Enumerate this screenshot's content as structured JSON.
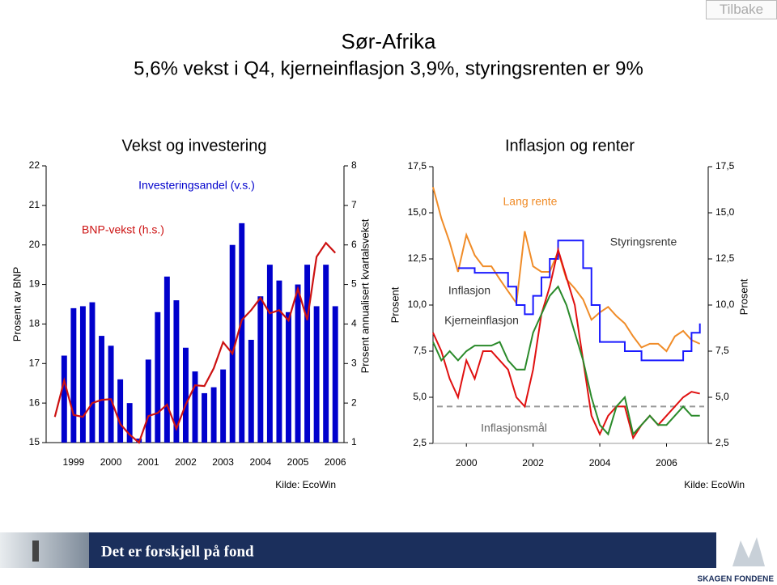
{
  "header": {
    "title": "Sør-Afrika",
    "subtitle": "5,6% vekst i Q4, kjerneinflasjon 3,9%, styringsrenten er 9%",
    "back_button": "Tilbake"
  },
  "footer": {
    "slogan": "Det er forskjell på fond",
    "brand": "SKAGEN FONDENE"
  },
  "chart_data": [
    {
      "type": "combo",
      "title": "Vekst og investering",
      "y_label": "Prosent av BNP",
      "y2_label": "Prosent annualisert kvartalsvekst",
      "source": "Kilde: EcoWin",
      "categories": [
        null,
        null,
        "1999",
        null,
        null,
        null,
        "2000",
        null,
        null,
        null,
        "2001",
        null,
        null,
        null,
        "2002",
        null,
        null,
        null,
        "2003",
        null,
        null,
        null,
        "2004",
        null,
        null,
        null,
        "2005",
        null,
        null,
        null,
        "2006"
      ],
      "series": [
        {
          "name": "Investeringsandel (v.s.)",
          "type": "bar",
          "color": "#0000cc",
          "values": [
            null,
            17.2,
            18.4,
            18.45,
            18.55,
            17.7,
            17.45,
            16.6,
            16.0,
            15.1,
            17.1,
            18.3,
            19.2,
            18.6,
            17.4,
            16.8,
            16.25,
            16.4,
            16.85,
            20.0,
            20.55,
            17.6,
            18.7,
            19.5,
            19.1,
            18.3,
            19.0,
            19.5,
            18.45,
            19.5,
            18.45
          ]
        },
        {
          "name": "BNP-vekst (h.s.)",
          "type": "line",
          "axis": "y2",
          "color": "#cc1111",
          "values": [
            1.65,
            2.57,
            1.7,
            1.65,
            2.0,
            2.08,
            2.1,
            1.47,
            1.2,
            1.0,
            1.67,
            1.75,
            1.96,
            1.35,
            1.96,
            2.45,
            2.43,
            2.88,
            3.54,
            3.25,
            4.1,
            4.35,
            4.66,
            4.27,
            4.35,
            4.09,
            4.89,
            4.1,
            5.7,
            6.05,
            5.8
          ]
        }
      ],
      "ylim": [
        15,
        22
      ],
      "yticks": [
        15,
        16,
        17,
        18,
        19,
        20,
        21,
        22
      ],
      "y2lim": [
        1,
        8
      ],
      "y2ticks": [
        1,
        2,
        3,
        4,
        5,
        6,
        7,
        8
      ]
    },
    {
      "type": "line",
      "title": "Inflasjon og renter",
      "y_label": "Prosent",
      "y2_label": "Prosent",
      "source": "Kilde: EcoWin",
      "x": [
        1999,
        1999.25,
        1999.5,
        1999.75,
        2000,
        2000.25,
        2000.5,
        2000.75,
        2001,
        2001.25,
        2001.5,
        2001.75,
        2002,
        2002.25,
        2002.5,
        2002.75,
        2003,
        2003.25,
        2003.5,
        2003.75,
        2004,
        2004.25,
        2004.5,
        2004.75,
        2005,
        2005.25,
        2005.5,
        2005.75,
        2006,
        2006.25,
        2006.5,
        2006.75,
        2007
      ],
      "series": [
        {
          "name": "Lang rente",
          "color": "#f08c28",
          "values": [
            16.4,
            14.7,
            13.4,
            11.8,
            13.8,
            12.7,
            12.1,
            12.1,
            11.4,
            10.75,
            10.1,
            14.0,
            12.1,
            11.8,
            11.8,
            12.9,
            11.4,
            10.9,
            10.3,
            9.2,
            9.6,
            9.9,
            9.4,
            9.0,
            8.3,
            7.7,
            7.9,
            7.9,
            7.5,
            8.3,
            8.6,
            8.1,
            7.9
          ]
        },
        {
          "name": "Styringsrente",
          "color": "#1a1aff",
          "step": true,
          "values": [
            null,
            null,
            null,
            12.0,
            12.0,
            11.75,
            11.75,
            11.75,
            11.75,
            11.0,
            10.0,
            9.5,
            10.5,
            11.5,
            12.5,
            13.5,
            13.5,
            13.5,
            12.0,
            10.0,
            8.0,
            8.0,
            8.0,
            7.5,
            7.5,
            7.0,
            7.0,
            7.0,
            7.0,
            7.0,
            7.5,
            8.5,
            9.0
          ]
        },
        {
          "name": "Inflasjon",
          "color": "#e01010",
          "values": [
            8.5,
            7.5,
            6.0,
            5.0,
            7.0,
            6.0,
            7.5,
            7.5,
            7.0,
            6.5,
            5.0,
            4.5,
            6.5,
            9.5,
            11.0,
            13.0,
            11.5,
            10.0,
            7.0,
            4.0,
            3.0,
            4.0,
            4.5,
            4.5,
            2.8,
            3.5,
            4.0,
            3.5,
            4.0,
            4.5,
            5.0,
            5.3,
            5.2
          ]
        },
        {
          "name": "Kjerneinflasjon",
          "color": "#2a8a2a",
          "values": [
            8.0,
            7.0,
            7.5,
            7.0,
            7.5,
            7.8,
            7.8,
            7.8,
            8.0,
            7.0,
            6.5,
            6.5,
            8.5,
            9.5,
            10.5,
            11.0,
            10.0,
            8.5,
            7.0,
            5.0,
            3.5,
            3.0,
            4.5,
            5.0,
            3.0,
            3.5,
            4.0,
            3.5,
            3.5,
            4.0,
            4.5,
            4.0,
            4.0
          ]
        }
      ],
      "reference_lines": [
        {
          "label": "Inflasjonsmål",
          "value": 4.5,
          "color": "#999999"
        }
      ],
      "xlim": [
        1999,
        2007.25
      ],
      "xticks": [
        2000,
        2002,
        2004,
        2006
      ],
      "ylim": [
        2.5,
        17.5
      ],
      "yticks": [
        {
          "value": 2.5,
          "label": "2,5"
        },
        {
          "value": 5,
          "label": "5,0"
        },
        {
          "value": 7.5,
          "label": "7,5"
        },
        {
          "value": 10,
          "label": "10,0"
        },
        {
          "value": 12.5,
          "label": "12,5"
        },
        {
          "value": 15,
          "label": "15,0"
        },
        {
          "value": 17.5,
          "label": "17,5"
        }
      ],
      "y2lim": [
        2.5,
        17.5
      ],
      "y2ticks": [
        {
          "value": 2.5,
          "label": "2,5"
        },
        {
          "value": 5,
          "label": "5,0"
        },
        {
          "value": 7.5,
          "label": "7,5"
        },
        {
          "value": 10,
          "label": "10,0"
        },
        {
          "value": 12.5,
          "label": "12,5"
        },
        {
          "value": 15,
          "label": "15,0"
        },
        {
          "value": 17.5,
          "label": "17,5"
        }
      ]
    }
  ]
}
